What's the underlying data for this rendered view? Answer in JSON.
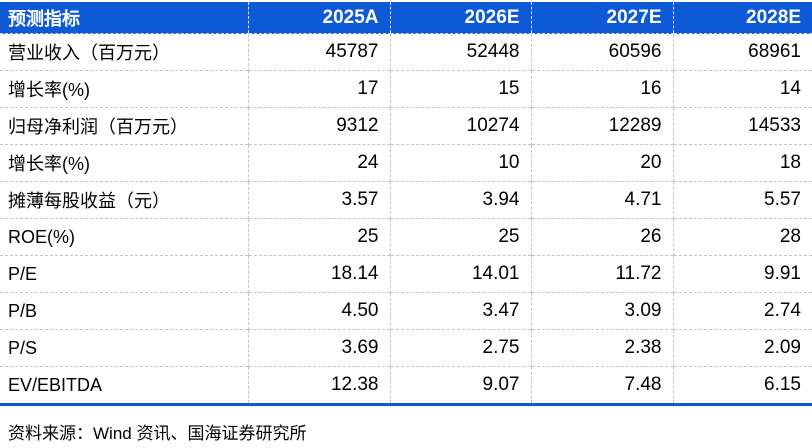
{
  "table": {
    "header": {
      "label": "预测指标",
      "columns": [
        "2025A",
        "2026E",
        "2027E",
        "2028E"
      ]
    },
    "rows": [
      {
        "label": "营业收入（百万元）",
        "values": [
          "45787",
          "52448",
          "60596",
          "68961"
        ]
      },
      {
        "label": "增长率(%)",
        "values": [
          "17",
          "15",
          "16",
          "14"
        ]
      },
      {
        "label": "归母净利润（百万元）",
        "values": [
          "9312",
          "10274",
          "12289",
          "14533"
        ]
      },
      {
        "label": "增长率(%)",
        "values": [
          "24",
          "10",
          "20",
          "18"
        ]
      },
      {
        "label": "摊薄每股收益（元）",
        "values": [
          "3.57",
          "3.94",
          "4.71",
          "5.57"
        ]
      },
      {
        "label": "ROE(%)",
        "values": [
          "25",
          "25",
          "26",
          "28"
        ]
      },
      {
        "label": "P/E",
        "values": [
          "18.14",
          "14.01",
          "11.72",
          "9.91"
        ]
      },
      {
        "label": "P/B",
        "values": [
          "4.50",
          "3.47",
          "3.09",
          "2.74"
        ]
      },
      {
        "label": "P/S",
        "values": [
          "3.69",
          "2.75",
          "2.38",
          "2.09"
        ]
      },
      {
        "label": "EV/EBITDA",
        "values": [
          "12.38",
          "9.07",
          "7.48",
          "6.15"
        ]
      }
    ],
    "footer": {
      "source": "资料来源：Wind 资讯、国海证券研究所"
    }
  },
  "colors": {
    "header_bg": "#0E5AD6",
    "header_text": "#FFFFFF",
    "body_text": "#000000",
    "grid_divider": "#C4C4C4",
    "bottom_rule": "#0E5AD6"
  }
}
